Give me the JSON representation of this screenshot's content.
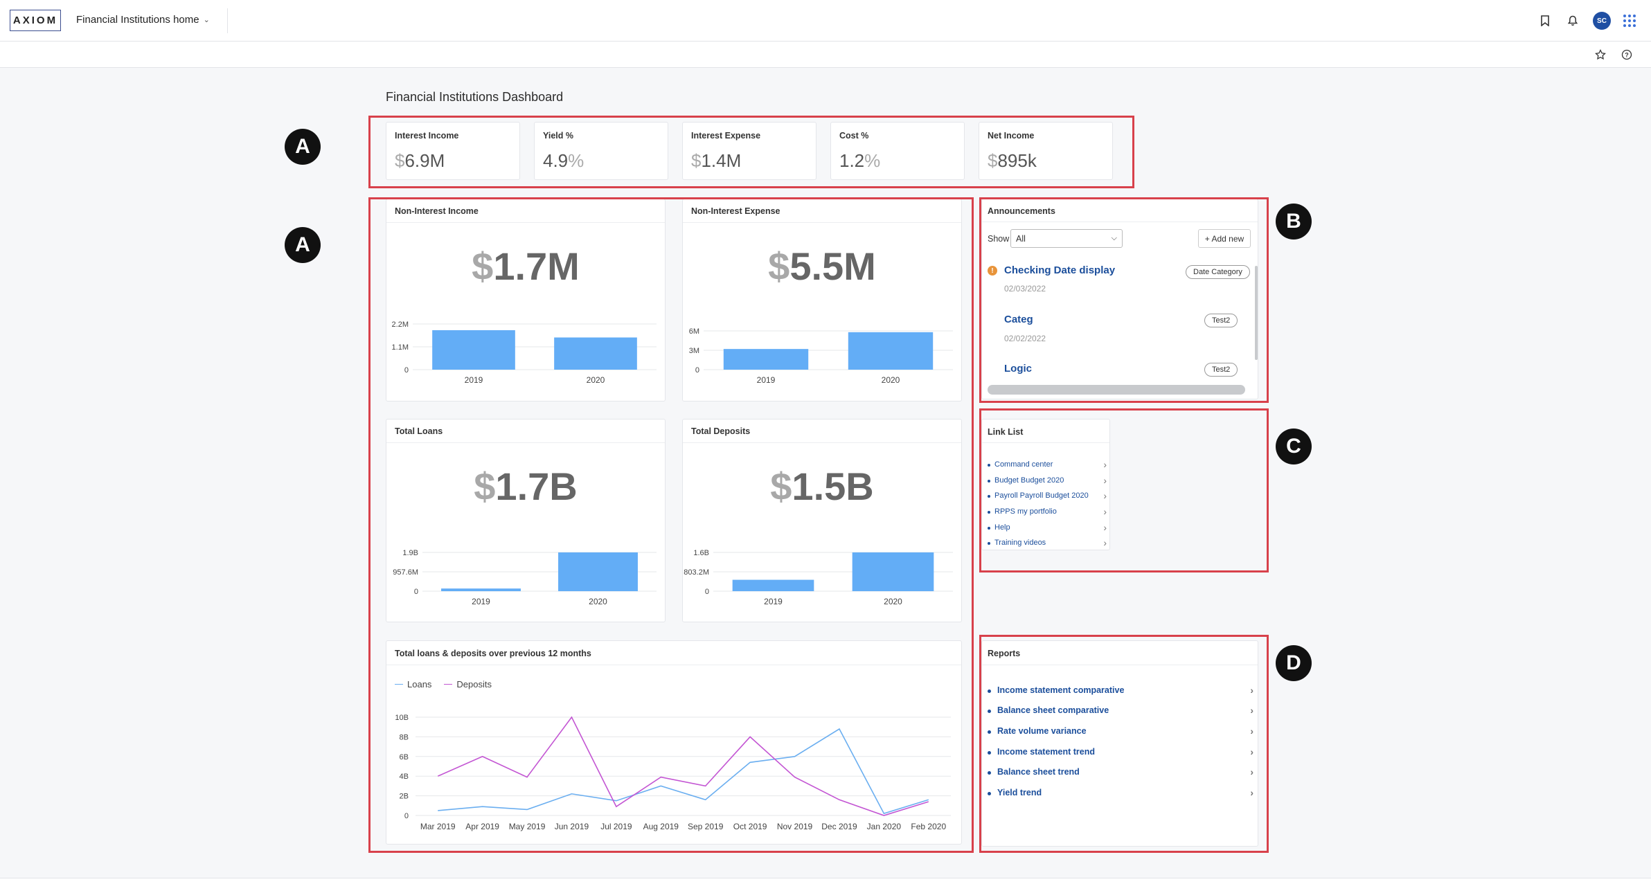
{
  "app": {
    "logo": "AXIOM",
    "home_title": "Financial Institutions home",
    "avatar_initials": "SC"
  },
  "dashboard": {
    "title": "Financial Institutions Dashboard"
  },
  "kpis": [
    {
      "title": "Interest Income",
      "prefix": "$",
      "value": "6.9M",
      "suffix": ""
    },
    {
      "title": "Yield %",
      "prefix": "",
      "value": "4.9",
      "suffix": "%"
    },
    {
      "title": "Interest Expense",
      "prefix": "$",
      "value": "1.4M",
      "suffix": ""
    },
    {
      "title": "Cost %",
      "prefix": "",
      "value": "1.2",
      "suffix": "%"
    },
    {
      "title": "Net Income",
      "prefix": "$",
      "value": "895k",
      "suffix": ""
    }
  ],
  "panels": {
    "non_interest_income": {
      "title": "Non-Interest Income",
      "prefix": "$",
      "value": "1.7M",
      "yticks": [
        "2.2M",
        "1.1M",
        "0"
      ],
      "xticks": [
        "2019",
        "2020"
      ]
    },
    "non_interest_expense": {
      "title": "Non-Interest Expense",
      "prefix": "$",
      "value": "5.5M",
      "yticks": [
        "6M",
        "3M",
        "0"
      ],
      "xticks": [
        "2019",
        "2020"
      ]
    },
    "total_loans": {
      "title": "Total Loans",
      "prefix": "$",
      "value": "1.7B",
      "yticks": [
        "1.9B",
        "957.6M",
        "0"
      ],
      "xticks": [
        "2019",
        "2020"
      ]
    },
    "total_deposits": {
      "title": "Total Deposits",
      "prefix": "$",
      "value": "1.5B",
      "yticks": [
        "1.6B",
        "803.2M",
        "0"
      ],
      "xticks": [
        "2019",
        "2020"
      ]
    }
  },
  "line_panel": {
    "title": "Total loans & deposits over previous 12 months",
    "legend": [
      "Loans",
      "Deposits"
    ],
    "yticks": [
      "10B",
      "8B",
      "6B",
      "4B",
      "2B",
      "0"
    ]
  },
  "chart_data": [
    {
      "type": "bar",
      "title": "Non-Interest Income",
      "categories": [
        "2019",
        "2020"
      ],
      "values": [
        1.9,
        1.55
      ],
      "unit": "M",
      "ylim": [
        0,
        2.2
      ]
    },
    {
      "type": "bar",
      "title": "Non-Interest Expense",
      "categories": [
        "2019",
        "2020"
      ],
      "values": [
        3.2,
        5.8
      ],
      "unit": "M",
      "ylim": [
        0,
        6
      ]
    },
    {
      "type": "bar",
      "title": "Total Loans",
      "categories": [
        "2019",
        "2020"
      ],
      "values": [
        0.13,
        1.9
      ],
      "unit": "B",
      "ylim": [
        0,
        1.9
      ]
    },
    {
      "type": "bar",
      "title": "Total Deposits",
      "categories": [
        "2019",
        "2020"
      ],
      "values": [
        0.47,
        1.6
      ],
      "unit": "B",
      "ylim": [
        0,
        1.6
      ]
    },
    {
      "type": "line",
      "title": "Total loans & deposits over previous 12 months",
      "x": [
        "Mar 2019",
        "Apr 2019",
        "May 2019",
        "Jun 2019",
        "Jul 2019",
        "Aug 2019",
        "Sep 2019",
        "Oct 2019",
        "Nov 2019",
        "Dec 2019",
        "Jan 2020",
        "Feb 2020"
      ],
      "ylim": [
        0,
        10
      ],
      "unit": "B",
      "series": [
        {
          "name": "Loans",
          "color": "#6aaef0",
          "values": [
            0.5,
            0.9,
            0.6,
            2.2,
            1.5,
            3.0,
            1.6,
            5.4,
            6.0,
            8.8,
            0.2,
            1.6
          ]
        },
        {
          "name": "Deposits",
          "color": "#c355d3",
          "values": [
            4.0,
            6.0,
            3.9,
            10.0,
            0.9,
            3.9,
            3.0,
            8.0,
            3.9,
            1.6,
            0.0,
            1.4
          ]
        }
      ]
    }
  ],
  "announcements": {
    "title": "Announcements",
    "show_label": "Show",
    "show_value": "All",
    "add_label": "+ Add new",
    "items": [
      {
        "title": "Checking Date display",
        "date": "02/03/2022",
        "tag": "Date Category",
        "alert": true
      },
      {
        "title": "Categ",
        "date": "02/02/2022",
        "tag": "Test2",
        "alert": false
      },
      {
        "title": "Logic",
        "date": "",
        "tag": "Test2",
        "alert": false
      }
    ]
  },
  "link_list": {
    "title": "Link List",
    "items": [
      "Command center",
      "Budget Budget 2020",
      "Payroll Payroll Budget 2020",
      "RPPS my portfolio",
      "Help",
      "Training videos"
    ]
  },
  "reports": {
    "title": "Reports",
    "items": [
      "Income statement comparative",
      "Balance sheet comparative",
      "Rate volume variance",
      "Income statement trend",
      "Balance sheet trend",
      "Yield trend"
    ]
  },
  "markers": [
    "A",
    "A",
    "B",
    "C",
    "D"
  ],
  "colors": {
    "bar": "#63adf6",
    "annotation_red": "#d8414b",
    "link": "#1b4e9b"
  }
}
